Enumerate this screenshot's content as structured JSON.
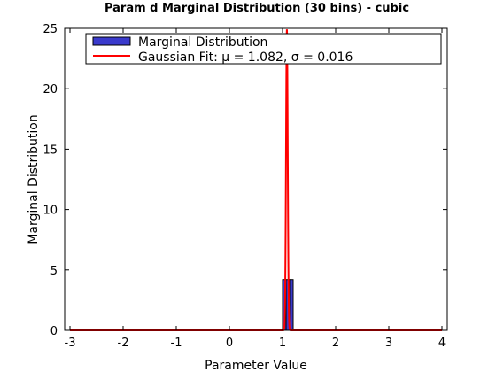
{
  "chart_data": {
    "type": "bar",
    "title": "Param d Marginal Distribution (30 bins) - cubic",
    "xlabel": "Parameter Value",
    "ylabel": "Marginal Distribution",
    "xlim": [
      -3.1,
      4.1
    ],
    "ylim": [
      0,
      25
    ],
    "xticks": [
      -3,
      -2,
      -1,
      0,
      1,
      2,
      3,
      4
    ],
    "yticks": [
      0,
      5,
      10,
      15,
      20,
      25
    ],
    "xtick_labels": [
      "-3",
      "-2",
      "-1",
      "0",
      "1",
      "2",
      "3",
      "4"
    ],
    "ytick_labels": [
      "0",
      "5",
      "10",
      "15",
      "20",
      "25"
    ],
    "grid": false,
    "legend_position": "top",
    "histogram": {
      "name": "Marginal Distribution",
      "color": "#3a3acc",
      "edge_color": "#000000",
      "bins": [
        {
          "x0": 1.0,
          "x1": 1.067,
          "value": 4.2
        },
        {
          "x0": 1.067,
          "x1": 1.133,
          "value": 4.2
        },
        {
          "x0": 1.133,
          "x1": 1.2,
          "value": 4.2
        }
      ]
    },
    "gaussian_fit": {
      "name": "Gaussian Fit: μ = 1.082, σ  = 0.016",
      "mu": 1.082,
      "sigma": 0.016,
      "peak": 24.9,
      "color": "#ff0000",
      "x_range": [
        -3,
        4
      ]
    }
  }
}
